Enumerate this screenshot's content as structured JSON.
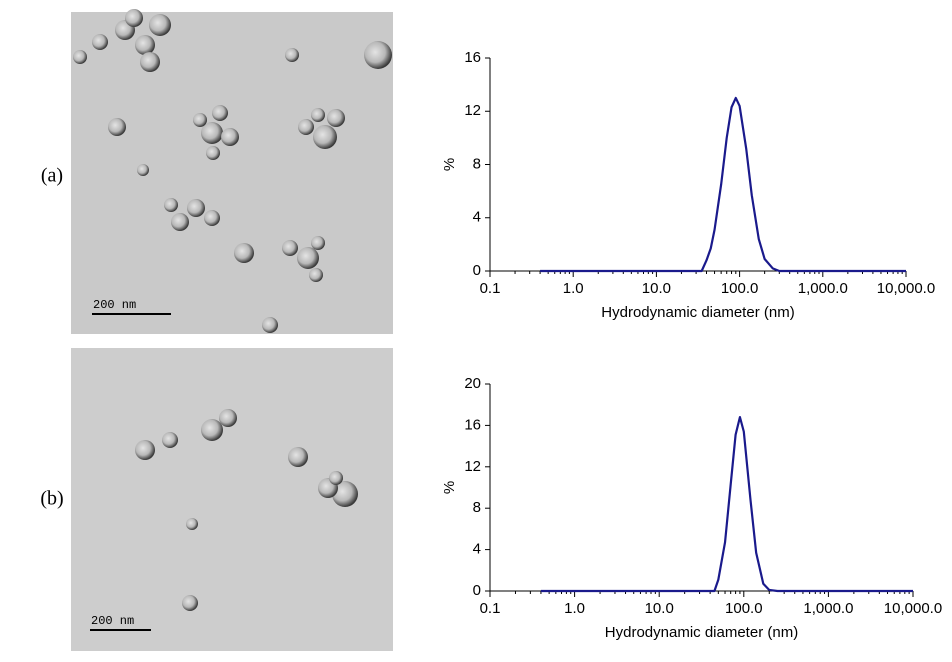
{
  "panels": [
    {
      "label": "(a)",
      "scale_bar": "200 nm"
    },
    {
      "label": "(b)",
      "scale_bar": "200 nm"
    }
  ],
  "chart_data": [
    {
      "type": "line",
      "x_label": "Hydrodynamic diameter (nm)",
      "y_label": "%",
      "log_x": true,
      "color": "#1a1a8c",
      "x": [
        0.4,
        1,
        10,
        30,
        35,
        40,
        45,
        50,
        60,
        70,
        80,
        90,
        100,
        120,
        140,
        170,
        200,
        250,
        300,
        1000,
        10000
      ],
      "values": [
        0,
        0,
        0,
        0,
        0,
        0.8,
        1.7,
        3.1,
        6.5,
        10.0,
        12.3,
        13,
        12.4,
        9.2,
        5.7,
        2.4,
        0.9,
        0.2,
        0,
        0,
        0
      ],
      "xlim": [
        0.1,
        10000
      ],
      "xticks": [
        0.1,
        {
          "value": 1,
          "label": "1.0"
        },
        {
          "value": 10,
          "label": "10.0"
        },
        {
          "value": 100,
          "label": "100.0"
        },
        {
          "value": 1000,
          "label": "1,000.0"
        },
        {
          "value": 10000,
          "label": "10,000.0"
        }
      ],
      "ylim": [
        0,
        16
      ],
      "yticks": [
        0,
        4,
        8,
        12,
        16
      ]
    },
    {
      "type": "line",
      "x_label": "Hydrodynamic diameter (nm)",
      "y_label": "%",
      "log_x": true,
      "color": "#1a1a8c",
      "x": [
        0.4,
        1,
        10,
        40,
        45,
        50,
        60,
        70,
        80,
        90,
        100,
        120,
        140,
        170,
        200,
        250,
        1000,
        10000
      ],
      "values": [
        0,
        0,
        0,
        0,
        0,
        1.1,
        4.7,
        10.3,
        15.1,
        16.8,
        15.4,
        8.8,
        3.7,
        0.7,
        0.1,
        0,
        0,
        0
      ],
      "xlim": [
        0.1,
        10000
      ],
      "xticks": [
        0.1,
        {
          "value": 1,
          "label": "1.0"
        },
        {
          "value": 10,
          "label": "10.0"
        },
        {
          "value": 100,
          "label": "100.0"
        },
        {
          "value": 1000,
          "label": "1,000.0"
        },
        {
          "value": 10000,
          "label": "10,000.0"
        }
      ],
      "ylim": [
        0,
        20
      ],
      "yticks": [
        0,
        4,
        8,
        12,
        16,
        20
      ]
    }
  ]
}
